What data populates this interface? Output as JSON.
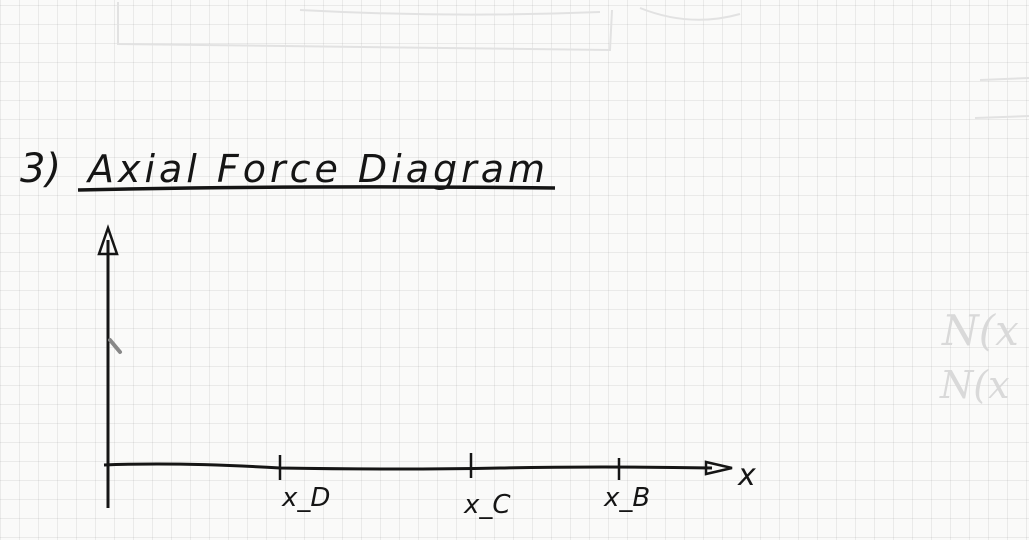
{
  "section": {
    "number": "3)",
    "title": "Axial Force Diagram"
  },
  "axes": {
    "x_label": "x",
    "ticks": [
      "x_D",
      "x_C",
      "x_B"
    ]
  },
  "ghost_margin": {
    "line1": "N(x",
    "line2": "N(x"
  },
  "colors": {
    "ink": "#151515",
    "grid": "#c8c8c8",
    "faint": "#d9d9d9"
  }
}
